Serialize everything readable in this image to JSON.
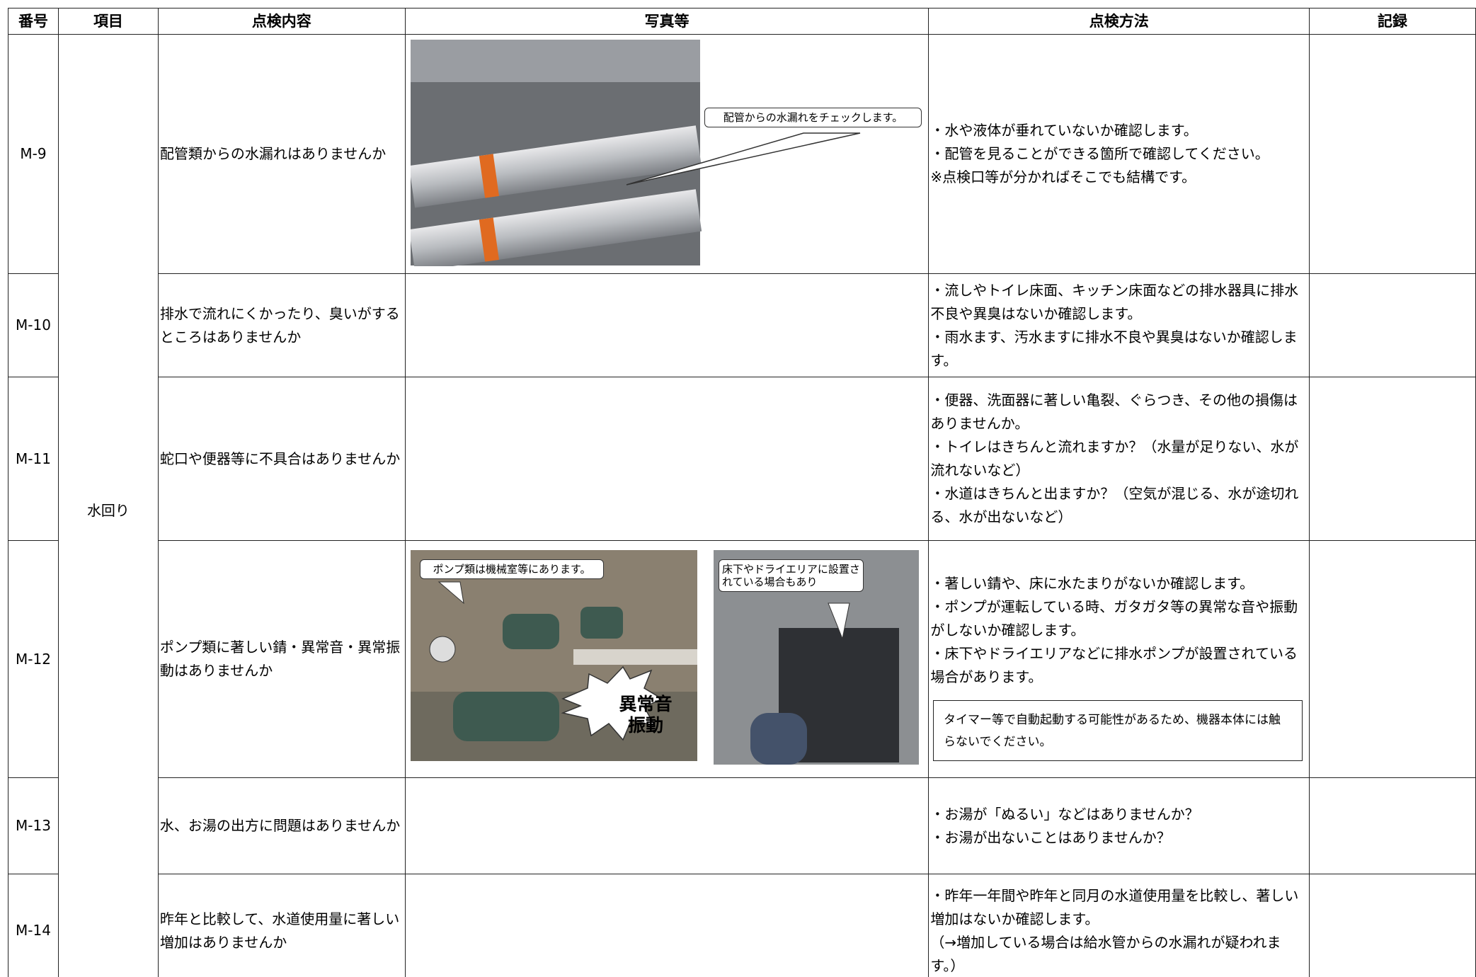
{
  "table": {
    "headers": [
      "番号",
      "項目",
      "点検内容",
      "写真等",
      "点検方法",
      "記録"
    ],
    "category": "水回り",
    "rows": [
      {
        "id": "M-9",
        "item": "配管類からの水漏れはありませんか",
        "method": [
          "・水や液体が垂れていないか確認します。",
          "・配管を見ることができる箇所で確認してください。",
          "※点検口等が分かればそこでも結構です。"
        ]
      },
      {
        "id": "M-10",
        "item": "排水で流れにくかったり、臭いがするところはありませんか",
        "method": [
          "・流しやトイレ床面、キッチン床面などの排水器具に排水不良や異臭はないか確認します。",
          "・雨水ます、汚水ますに排水不良や異臭はないか確認します。"
        ]
      },
      {
        "id": "M-11",
        "item": "蛇口や便器等に不具合はありませんか",
        "method": [
          "・便器、洗面器に著しい亀裂、ぐらつき、その他の損傷はありませんか。",
          "・トイレはきちんと流れますか？（水量が足りない、水が流れないなど）",
          "・水道はきちんと出ますか？（空気が混じる、水が途切れる、水が出ないなど）"
        ]
      },
      {
        "id": "M-12",
        "item": "ポンプ類に著しい錆・異常音・異常振動はありませんか",
        "method": [
          "・著しい錆や、床に水たまりがないか確認します。",
          "・ポンプが運転している時、ガタガタ等の異常な音や振動がしないか確認します。",
          "・床下やドライエリアなどに排水ポンプが設置されている場合があります。"
        ]
      },
      {
        "id": "M-13",
        "item": "水、お湯の出方に問題はありませんか",
        "method": [
          "・お湯が「ぬるい」などはありませんか？",
          "・お湯が出ないことはありませんか？"
        ]
      },
      {
        "id": "M-14",
        "item": "昨年と比較して、水道使用量に著しい増加はありませんか",
        "method": [
          "・昨年一年間や昨年と同月の水道使用量を比較し、著しい増加はないか確認します。",
          "（→増加している場合は給水管からの水漏れが疑われます。）"
        ]
      }
    ]
  },
  "photos": {
    "m9_callout": "配管からの水漏れをチェックします。",
    "m12_callout_1": "ポンプ類は機械室等にあります。",
    "m12_callout_2": "床下やドライエリアに設置されている場合もあり",
    "m12_burst": [
      "異常音",
      "振動"
    ]
  },
  "note": "タイマー等で自動起動する可能性があるため、機器本体には触らないでください。"
}
